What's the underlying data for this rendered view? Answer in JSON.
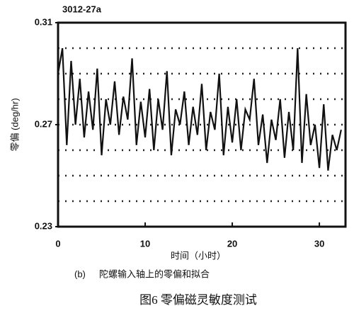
{
  "chart_data": {
    "type": "line",
    "title": "3012-27a",
    "ylabel": "零偏 (deg/hr)",
    "xlabel": "时间（小时）",
    "subcaption_tag": "(b)",
    "subcaption": "陀螺输入轴上的零偏和拟合",
    "caption": "图6 零偏磁灵敏度测试",
    "color": "#111111",
    "x": [
      0,
      0.5,
      1,
      1.5,
      2,
      2.5,
      3,
      3.5,
      4,
      4.5,
      5,
      5.5,
      6,
      6.5,
      7,
      7.5,
      8,
      8.5,
      9,
      9.5,
      10,
      10.5,
      11,
      11.5,
      12,
      12.5,
      13,
      13.5,
      14,
      14.5,
      15,
      15.5,
      16,
      16.5,
      17,
      17.5,
      18,
      18.5,
      19,
      19.5,
      20,
      20.5,
      21,
      21.5,
      22,
      22.5,
      23,
      23.5,
      24,
      24.5,
      25,
      25.5,
      26,
      26.5,
      27,
      27.5,
      28,
      28.5,
      29,
      29.5,
      30,
      30.5,
      31,
      31.5,
      32,
      32.5
    ],
    "values": [
      0.29,
      0.3,
      0.262,
      0.295,
      0.27,
      0.288,
      0.265,
      0.283,
      0.268,
      0.292,
      0.258,
      0.28,
      0.27,
      0.287,
      0.266,
      0.281,
      0.272,
      0.296,
      0.262,
      0.279,
      0.265,
      0.284,
      0.26,
      0.28,
      0.268,
      0.291,
      0.258,
      0.276,
      0.27,
      0.283,
      0.262,
      0.277,
      0.266,
      0.286,
      0.26,
      0.275,
      0.268,
      0.29,
      0.258,
      0.277,
      0.263,
      0.28,
      0.26,
      0.276,
      0.272,
      0.288,
      0.262,
      0.274,
      0.255,
      0.272,
      0.264,
      0.28,
      0.257,
      0.275,
      0.26,
      0.3,
      0.255,
      0.282,
      0.262,
      0.27,
      0.253,
      0.278,
      0.252,
      0.266,
      0.26,
      0.268
    ],
    "xlim": [
      0,
      33
    ],
    "xticks": [
      0,
      10,
      20,
      30
    ],
    "ylim": [
      0.23,
      0.31
    ],
    "yticks": [
      0.23,
      0.27,
      0.31
    ],
    "ygrid": [
      0.24,
      0.25,
      0.26,
      0.27,
      0.28,
      0.29,
      0.3
    ]
  }
}
